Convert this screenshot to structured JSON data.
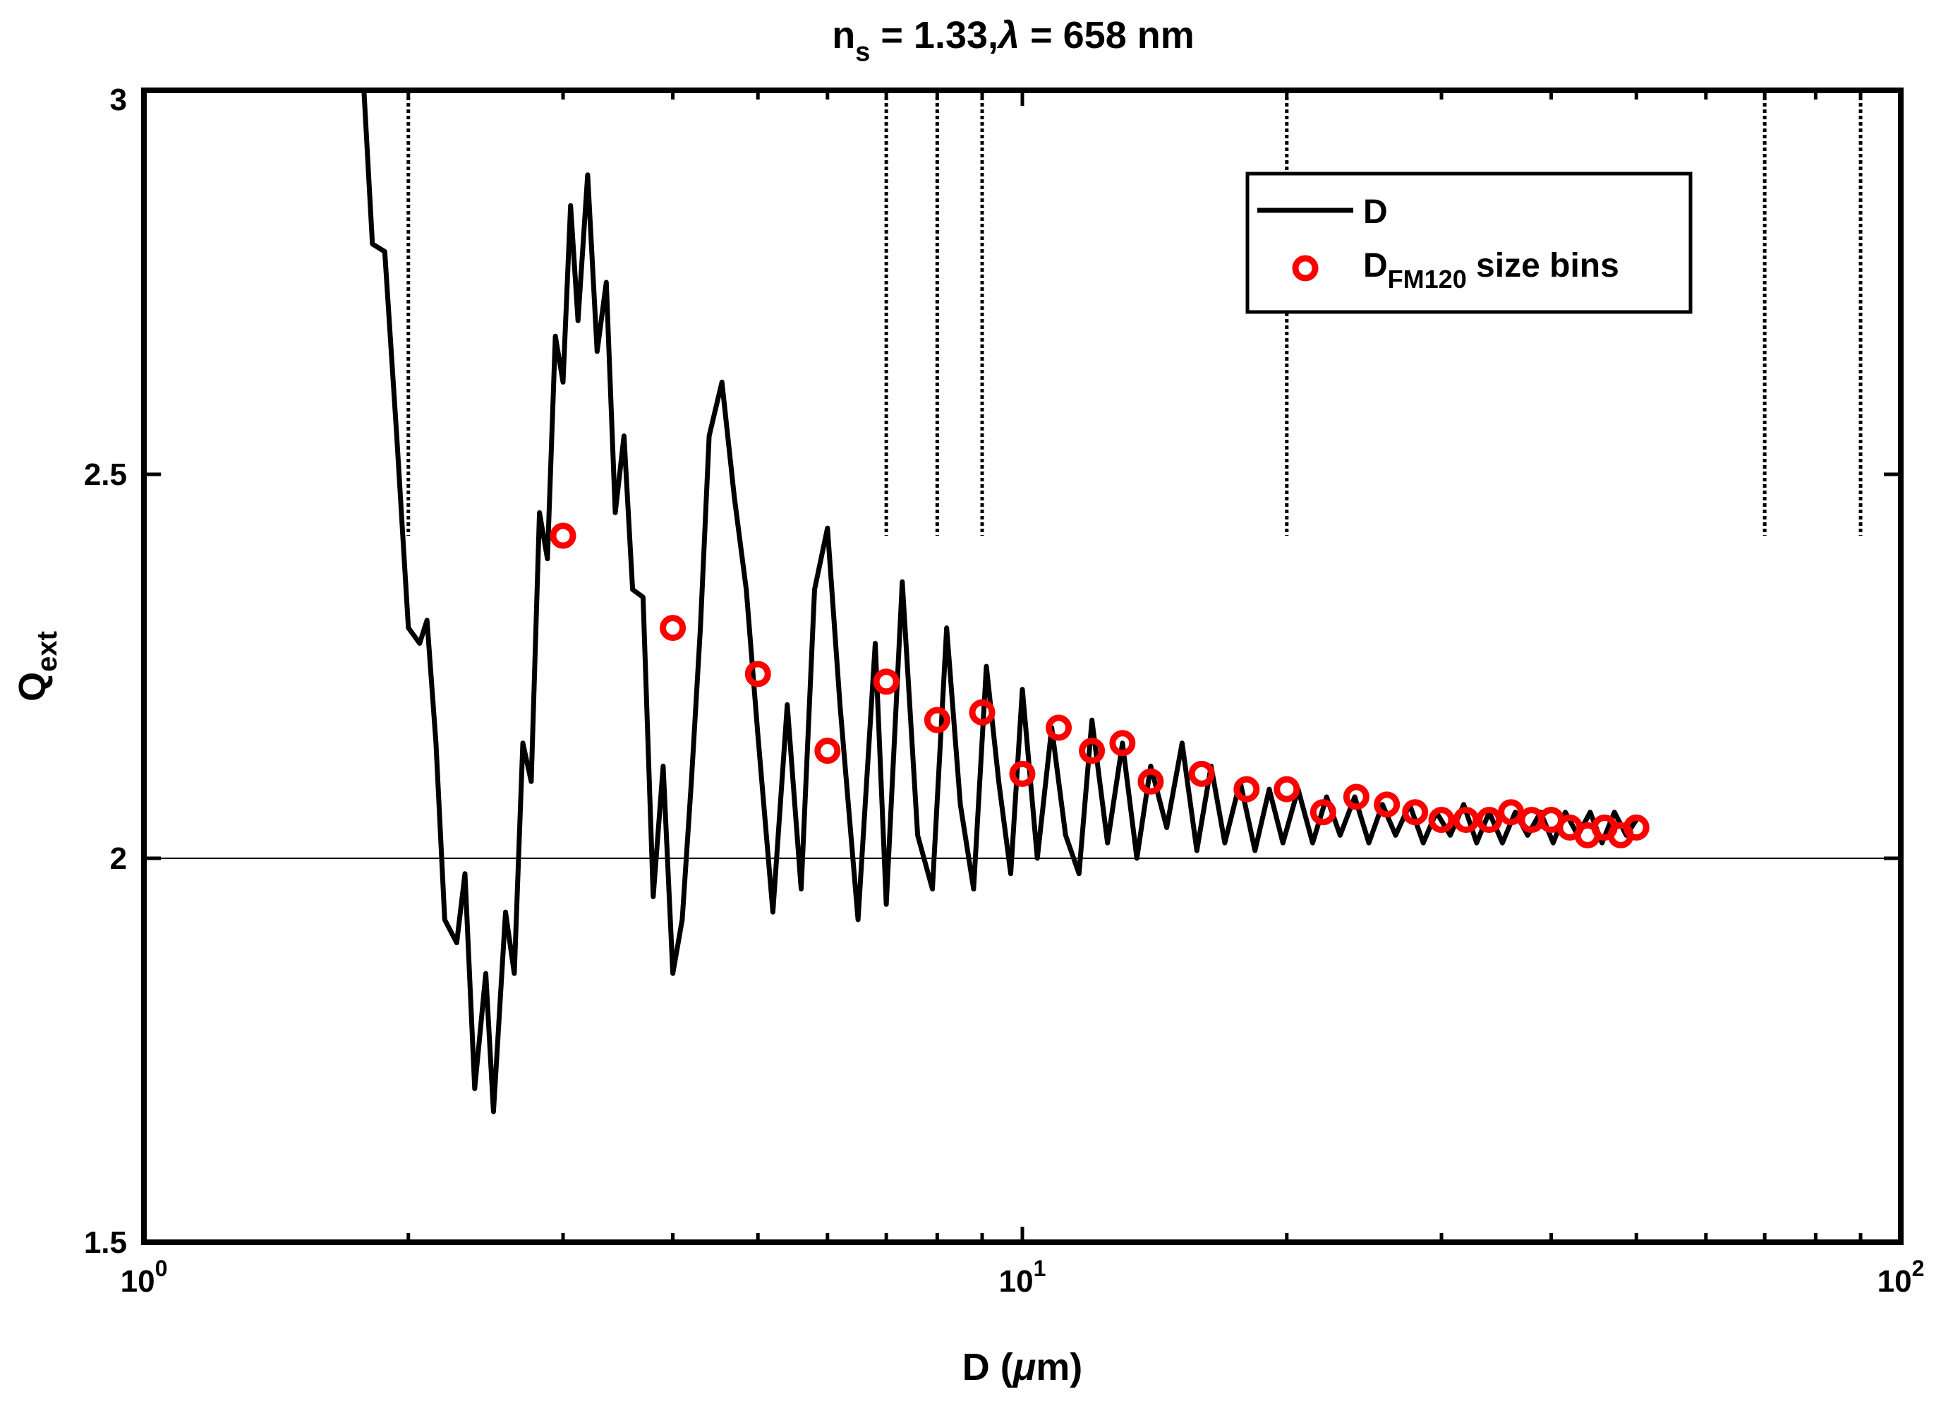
{
  "chart_data": {
    "type": "line",
    "title": {
      "ns_symbol": "n",
      "ns_subscript": "s",
      "ns_rest": " = 1.33,",
      "lambda_symbol": "λ",
      "lambda_rest": " = 658 nm"
    },
    "xlabel": {
      "prefix": "D (",
      "mu": "μ",
      "suffix": "m)"
    },
    "ylabel": {
      "main": "Q",
      "subscript": "ext"
    },
    "xscale": "log",
    "xlim": [
      1,
      100
    ],
    "ylim": [
      1.5,
      3
    ],
    "x_ticks": [
      {
        "base": "10",
        "exp": "0",
        "value": 1
      },
      {
        "base": "10",
        "exp": "1",
        "value": 10
      },
      {
        "base": "10",
        "exp": "2",
        "value": 100
      }
    ],
    "y_ticks": [
      "1.5",
      "2",
      "2.5",
      "3"
    ],
    "reference_line_y": 2,
    "bin_edges": [
      2,
      7,
      8,
      9,
      20,
      70,
      90
    ],
    "legend_position": "top-right",
    "series": [
      {
        "name": "D",
        "type": "line",
        "color": "#000000",
        "x": [
          1.78,
          1.82,
          1.88,
          1.94,
          2.0,
          2.06,
          2.1,
          2.15,
          2.2,
          2.27,
          2.32,
          2.38,
          2.45,
          2.5,
          2.58,
          2.64,
          2.7,
          2.76,
          2.82,
          2.88,
          2.94,
          3.0,
          3.06,
          3.12,
          3.2,
          3.28,
          3.36,
          3.44,
          3.52,
          3.6,
          3.7,
          3.8,
          3.9,
          4.0,
          4.1,
          4.2,
          4.3,
          4.4,
          4.55,
          4.7,
          4.85,
          5.0,
          5.2,
          5.4,
          5.6,
          5.8,
          6.0,
          6.2,
          6.5,
          6.8,
          7.0,
          7.3,
          7.6,
          7.9,
          8.2,
          8.5,
          8.8,
          9.1,
          9.4,
          9.7,
          10.0,
          10.4,
          10.8,
          11.2,
          11.6,
          12.0,
          12.5,
          13.0,
          13.5,
          14.0,
          14.6,
          15.2,
          15.8,
          16.4,
          17.0,
          17.7,
          18.4,
          19.1,
          19.8,
          20.6,
          21.4,
          22.2,
          23.0,
          23.9,
          24.8,
          25.7,
          26.6,
          27.6,
          28.6,
          29.6,
          30.7,
          31.8,
          32.9,
          34.0,
          35.2,
          36.4,
          37.6,
          38.9,
          40.2,
          41.5,
          42.9,
          44.3,
          45.7,
          47.2,
          48.7,
          50.0
        ],
        "y": [
          3.0,
          2.8,
          2.79,
          2.55,
          2.3,
          2.28,
          2.31,
          2.15,
          1.92,
          1.89,
          1.98,
          1.7,
          1.85,
          1.67,
          1.93,
          1.85,
          2.15,
          2.1,
          2.45,
          2.39,
          2.68,
          2.62,
          2.85,
          2.7,
          2.89,
          2.66,
          2.75,
          2.45,
          2.55,
          2.35,
          2.34,
          1.95,
          2.12,
          1.85,
          1.92,
          2.1,
          2.3,
          2.55,
          2.62,
          2.47,
          2.35,
          2.16,
          1.93,
          2.2,
          1.96,
          2.35,
          2.43,
          2.2,
          1.92,
          2.28,
          1.94,
          2.36,
          2.03,
          1.96,
          2.3,
          2.07,
          1.96,
          2.25,
          2.1,
          1.98,
          2.22,
          2.0,
          2.17,
          2.03,
          1.98,
          2.18,
          2.02,
          2.15,
          2.0,
          2.12,
          2.04,
          2.15,
          2.01,
          2.12,
          2.02,
          2.1,
          2.01,
          2.09,
          2.02,
          2.09,
          2.02,
          2.08,
          2.03,
          2.08,
          2.02,
          2.07,
          2.03,
          2.07,
          2.02,
          2.06,
          2.03,
          2.07,
          2.02,
          2.06,
          2.02,
          2.06,
          2.03,
          2.06,
          2.02,
          2.06,
          2.03,
          2.06,
          2.02,
          2.06,
          2.03,
          2.05
        ]
      },
      {
        "name": "D",
        "name_sub": "FM120",
        "name_suffix": " size bins",
        "type": "scatter",
        "color": "#ff0000",
        "x": [
          3.0,
          4.0,
          5.0,
          6.0,
          7.0,
          8.0,
          9.0,
          10.0,
          11.0,
          12.0,
          13.0,
          14.0,
          16.0,
          18.0,
          20.0,
          22.0,
          24.0,
          26.0,
          28.0,
          30.0,
          32.0,
          34.0,
          36.0,
          38.0,
          40.0,
          42.0,
          44.0,
          46.0,
          48.0,
          50.0
        ],
        "y": [
          2.42,
          2.3,
          2.24,
          2.14,
          2.23,
          2.18,
          2.19,
          2.11,
          2.17,
          2.14,
          2.15,
          2.1,
          2.11,
          2.09,
          2.09,
          2.06,
          2.08,
          2.07,
          2.06,
          2.05,
          2.05,
          2.05,
          2.06,
          2.05,
          2.05,
          2.04,
          2.03,
          2.04,
          2.03,
          2.04
        ]
      }
    ]
  }
}
